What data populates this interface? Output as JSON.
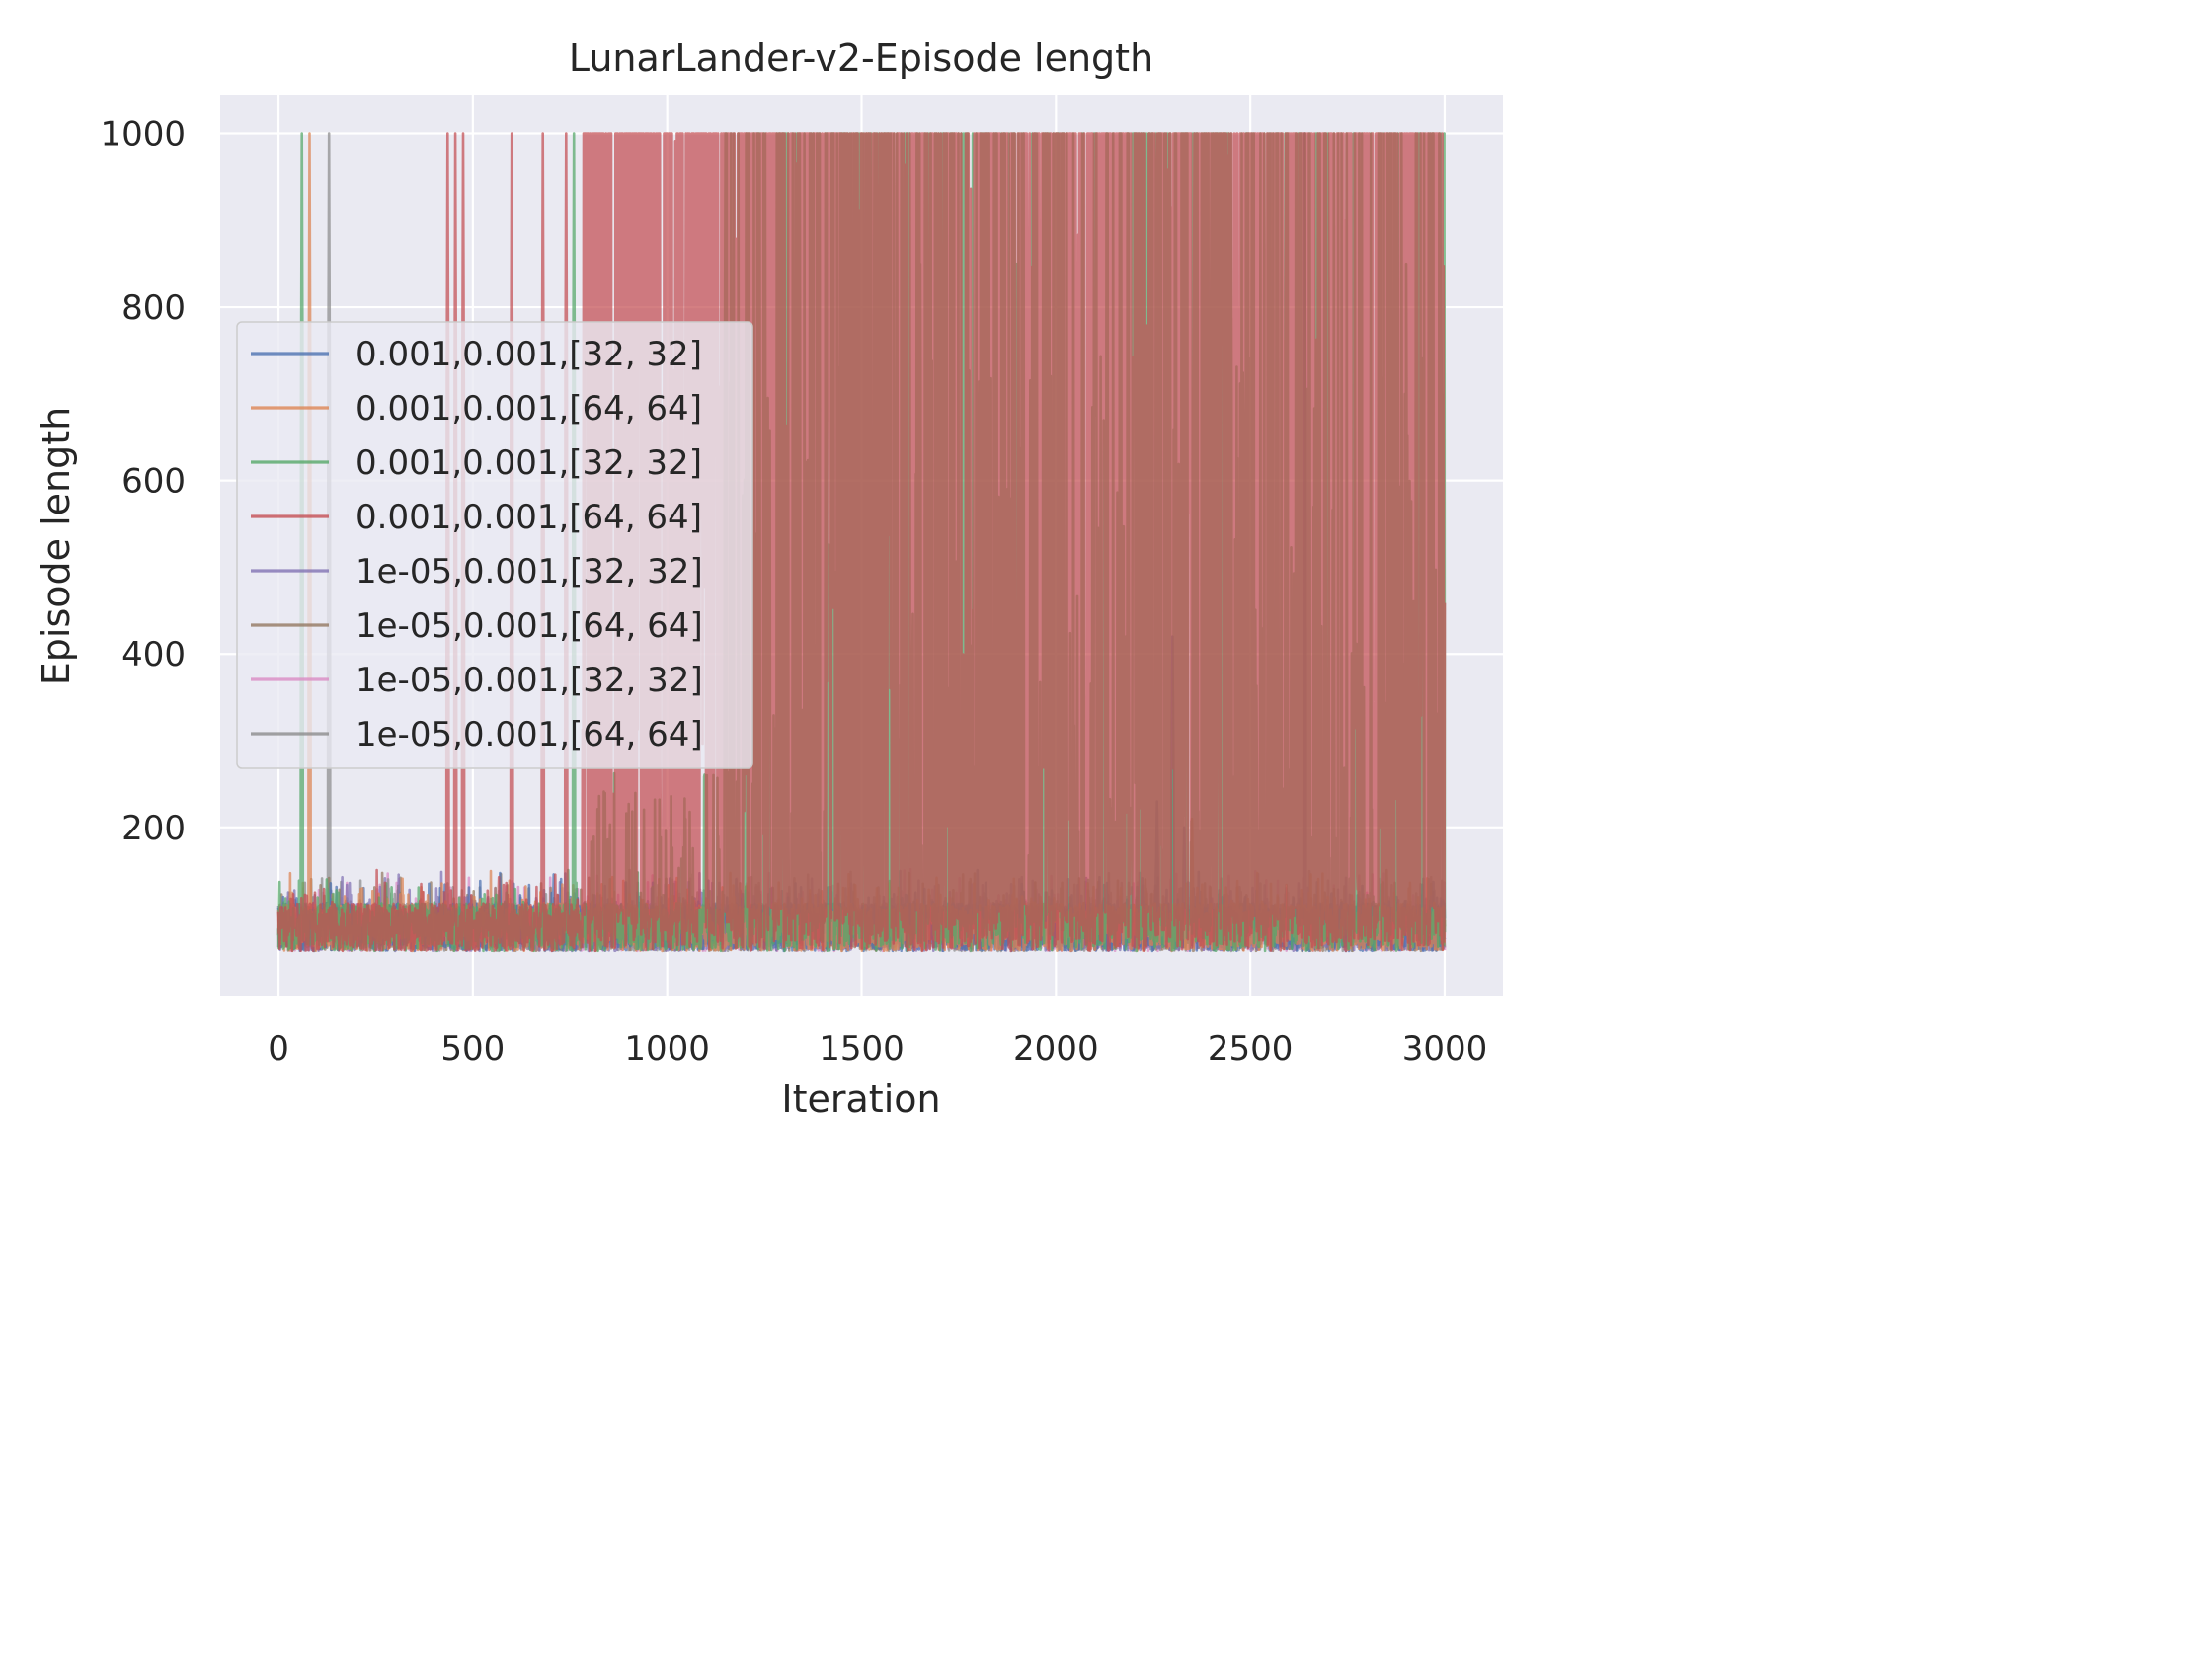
{
  "chart_data": {
    "type": "line",
    "title": "LunarLander-v2-Episode length",
    "xlabel": "Iteration",
    "ylabel": "Episode length",
    "xlim": [
      -150,
      3150
    ],
    "ylim": [
      5,
      1045
    ],
    "xticks": [
      0,
      500,
      1000,
      1500,
      2000,
      2500,
      3000
    ],
    "xtick_labels": [
      "0",
      "500",
      "1000",
      "1500",
      "2000",
      "2500",
      "3000"
    ],
    "yticks": [
      200,
      400,
      600,
      800,
      1000
    ],
    "ytick_labels": [
      "200",
      "400",
      "600",
      "800",
      "1000"
    ],
    "grid": true,
    "legend_position": "center-left",
    "num_iterations": 3000,
    "series": [
      {
        "name": "0.001,0.001,[32, 32]",
        "color": "#4c72b0",
        "spikes": [
          [
            2260,
            230
          ],
          [
            2300,
            420
          ],
          [
            2330,
            200
          ]
        ]
      },
      {
        "name": "0.001,0.001,[64, 64]",
        "color": "#dd8452",
        "spikes": [
          [
            80,
            1000
          ],
          [
            2350,
            210
          ]
        ]
      },
      {
        "name": "0.001,0.001,[32, 32]",
        "color": "#55a868",
        "spikes": [
          [
            60,
            1000
          ],
          [
            760,
            1000
          ],
          [
            1150,
            1000
          ],
          [
            1500,
            1000
          ],
          [
            1560,
            1000
          ],
          [
            1650,
            1000
          ],
          [
            1900,
            1000
          ],
          [
            2000,
            1000
          ],
          [
            2100,
            1000
          ],
          [
            2200,
            1000
          ],
          [
            2400,
            1000
          ],
          [
            2450,
            1000
          ],
          [
            2550,
            1000
          ],
          [
            2700,
            1000
          ],
          [
            2900,
            1000
          ],
          [
            2990,
            1000
          ]
        ]
      },
      {
        "name": "0.001,0.001,[64, 64]",
        "color": "#c44e52",
        "spikes": [
          [
            435,
            1000
          ],
          [
            455,
            1000
          ],
          [
            475,
            1000
          ],
          [
            600,
            1000
          ],
          [
            680,
            1000
          ],
          [
            740,
            1000
          ]
        ],
        "dense_from": 780
      },
      {
        "name": "1e-05,0.001,[32, 32]",
        "color": "#8172b3",
        "spikes": [
          [
            2640,
            1000
          ]
        ]
      },
      {
        "name": "1e-05,0.001,[64, 64]",
        "color": "#937860",
        "spikes": []
      },
      {
        "name": "1e-05,0.001,[32, 32]",
        "color": "#da8bc3",
        "spikes": []
      },
      {
        "name": "1e-05,0.001,[64, 64]",
        "color": "#8c8c8c",
        "spikes": [
          [
            130,
            1000
          ]
        ]
      }
    ]
  }
}
